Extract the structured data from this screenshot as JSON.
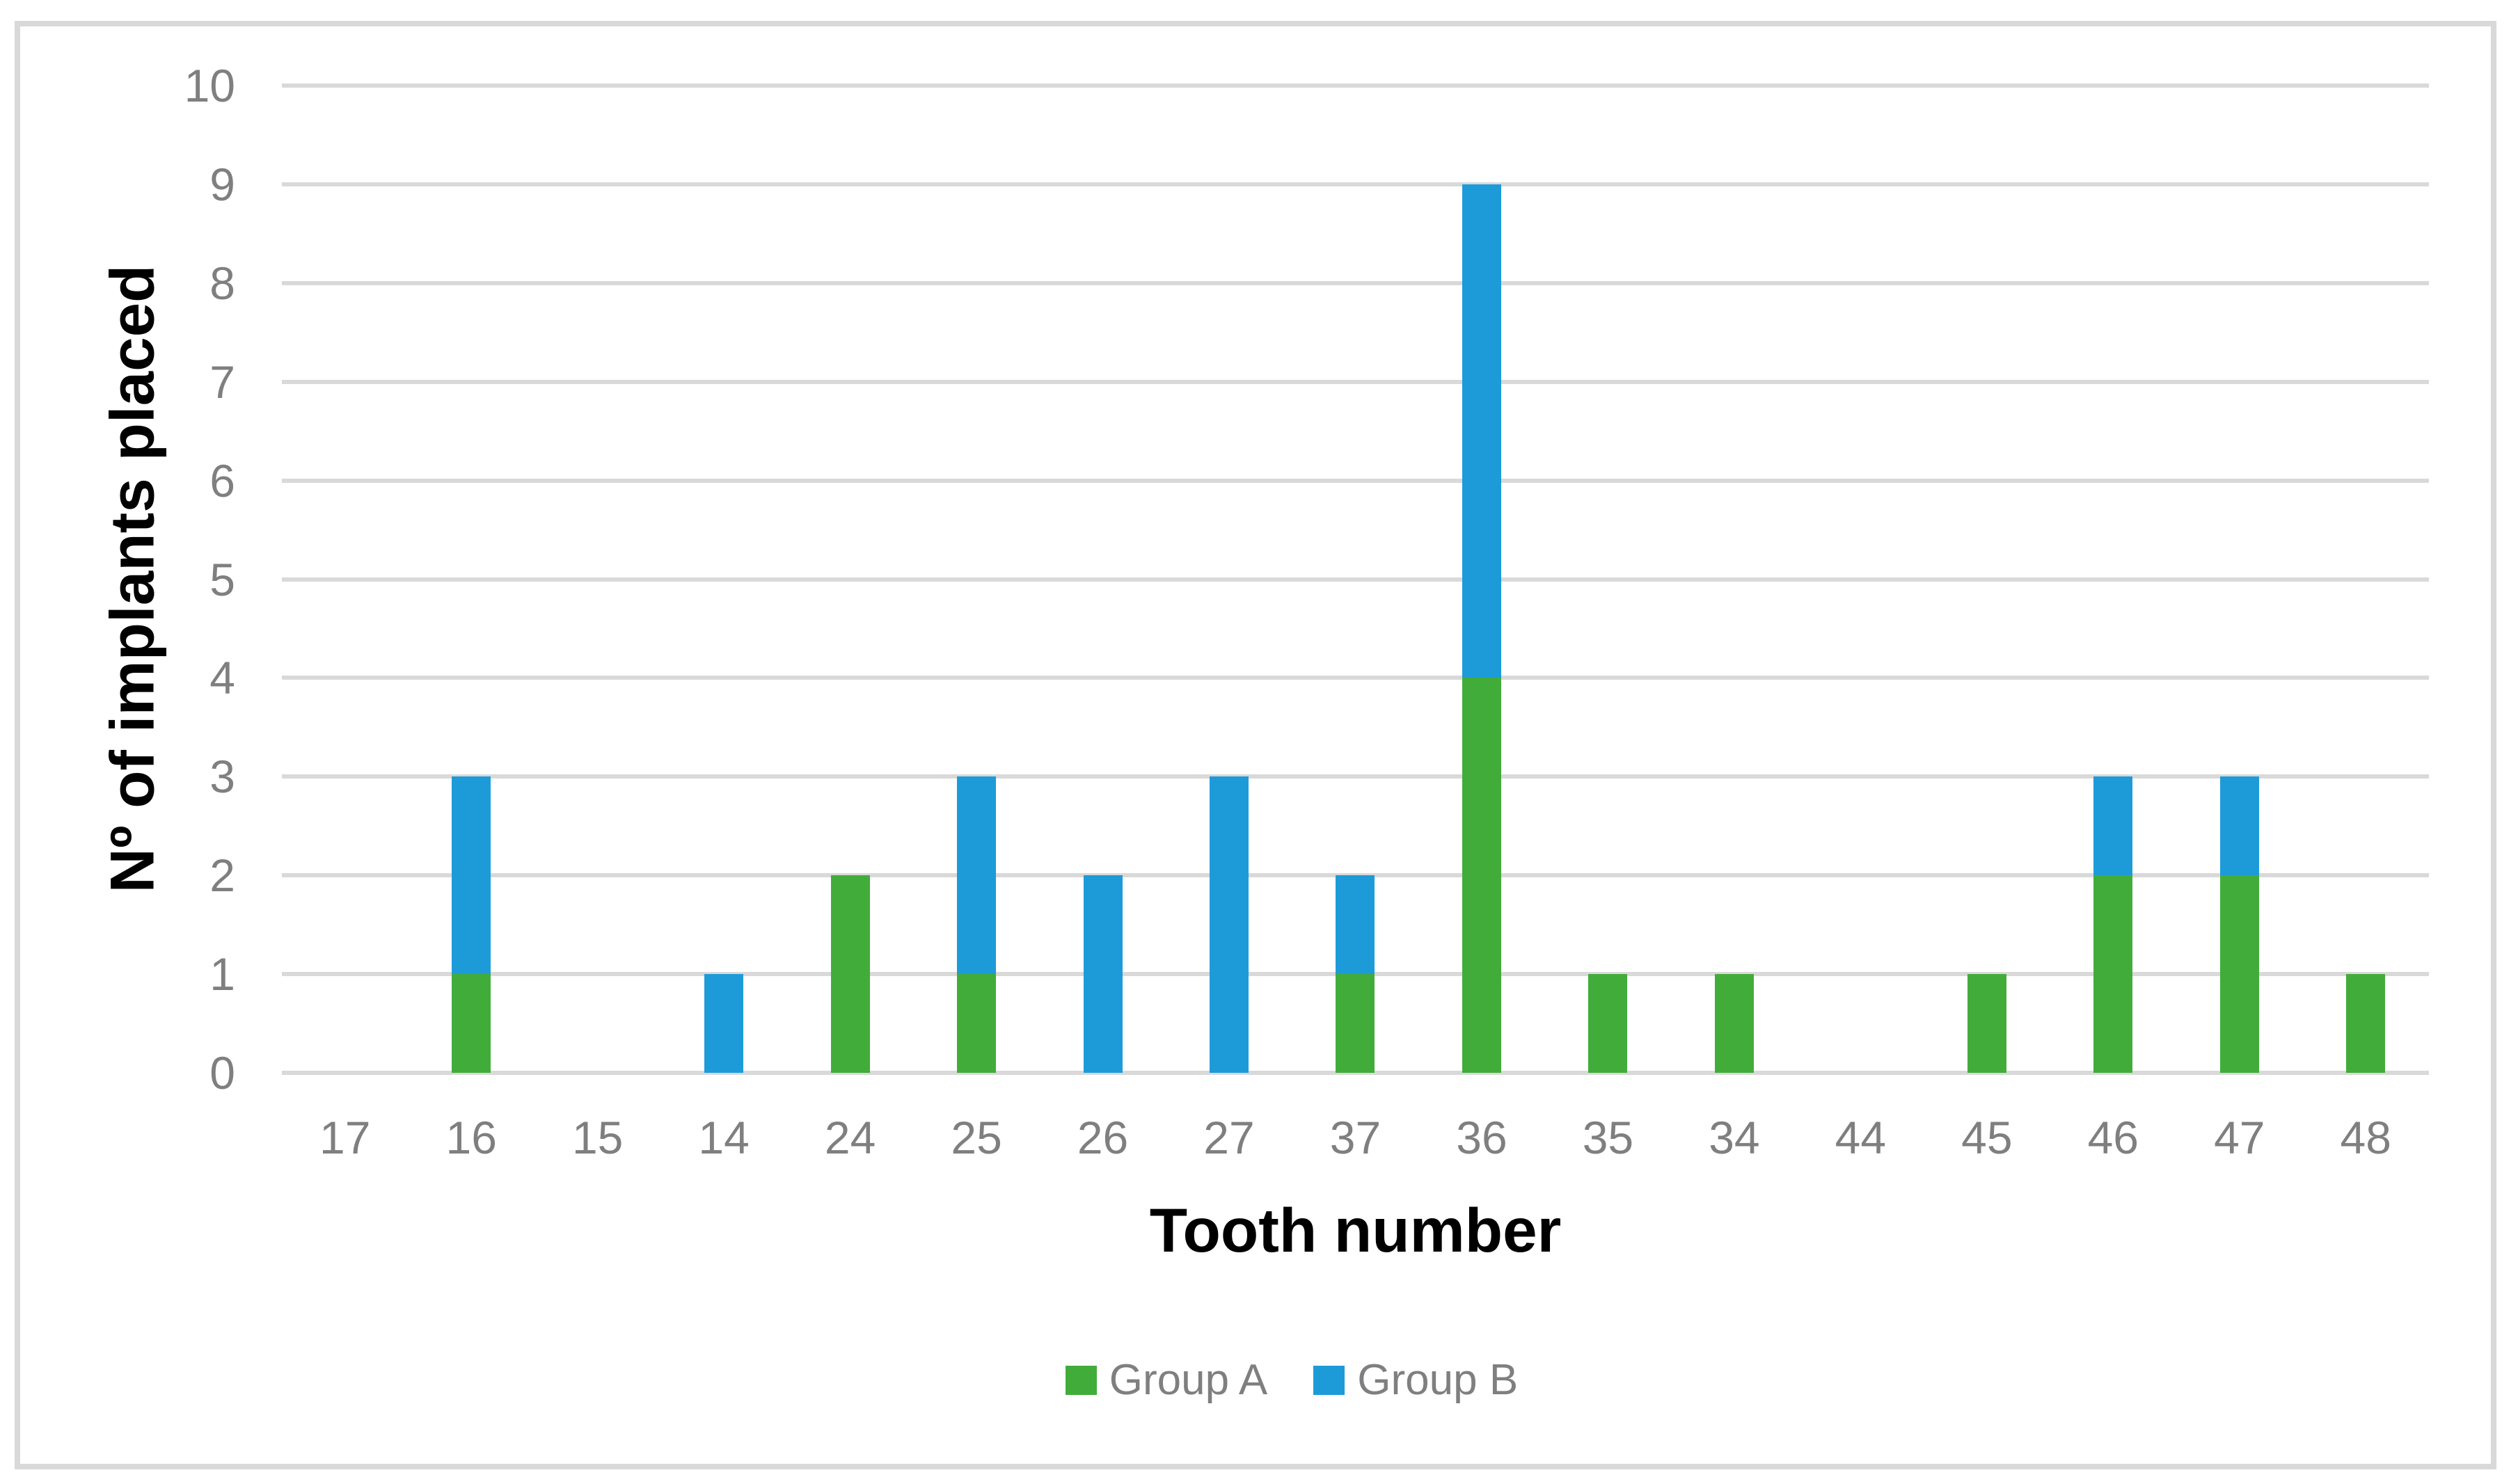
{
  "chart_data": {
    "type": "bar",
    "stacked": true,
    "categories": [
      "17",
      "16",
      "15",
      "14",
      "24",
      "25",
      "26",
      "27",
      "37",
      "36",
      "35",
      "34",
      "44",
      "45",
      "46",
      "47",
      "48"
    ],
    "series": [
      {
        "name": "Group A",
        "color": "#42AC3B",
        "values": [
          0,
          1,
          0,
          0,
          2,
          1,
          0,
          0,
          1,
          4,
          1,
          1,
          0,
          1,
          2,
          2,
          1
        ]
      },
      {
        "name": "Group B",
        "color": "#1D9BD9",
        "values": [
          0,
          2,
          0,
          1,
          0,
          2,
          2,
          3,
          1,
          5,
          0,
          0,
          0,
          0,
          1,
          1,
          0
        ]
      }
    ],
    "xlabel": "Tooth number",
    "ylabel": "Nº of implants placed",
    "ylim": [
      0,
      10
    ],
    "ytick_step": 1,
    "yticks": [
      "0",
      "1",
      "2",
      "3",
      "4",
      "5",
      "6",
      "7",
      "8",
      "9",
      "10"
    ],
    "grid": "horizontal",
    "gridline_color": "#D9D9D9",
    "frame_border_color": "#D9D9D9",
    "tick_label_color": "#7F7F7F",
    "axis_title_color": "#000000",
    "legend_position": "bottom"
  }
}
